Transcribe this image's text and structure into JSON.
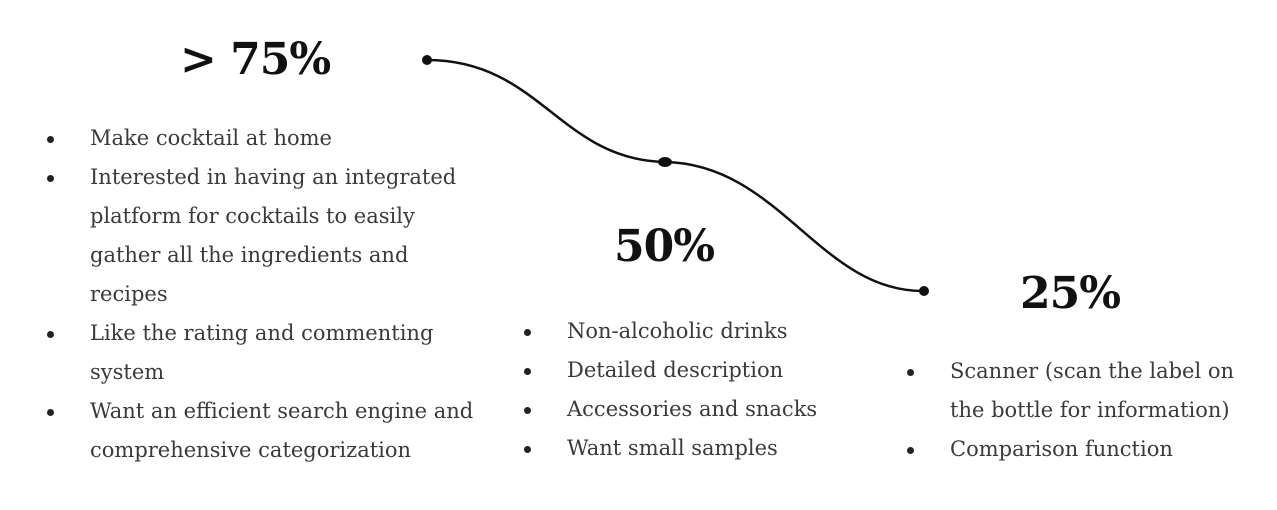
{
  "stages": [
    {
      "percent": "> 75%",
      "items": [
        "Make cocktail at home",
        "Interested in having an integrated platform for cocktails to easily gather all the ingredients and recipes",
        "Like the rating and commenting system",
        "Want an efficient search engine and comprehensive categorization"
      ]
    },
    {
      "percent": "50%",
      "items": [
        "Non-alcoholic drinks",
        "Detailed description",
        "Accessories and snacks",
        "Want small samples"
      ]
    },
    {
      "percent": "25%",
      "items": [
        "Scanner (scan the label on the bottle for information)",
        "Comparison function"
      ]
    }
  ],
  "colors": {
    "heading": "#111111",
    "text": "#3a3a3a",
    "line": "#111111"
  }
}
